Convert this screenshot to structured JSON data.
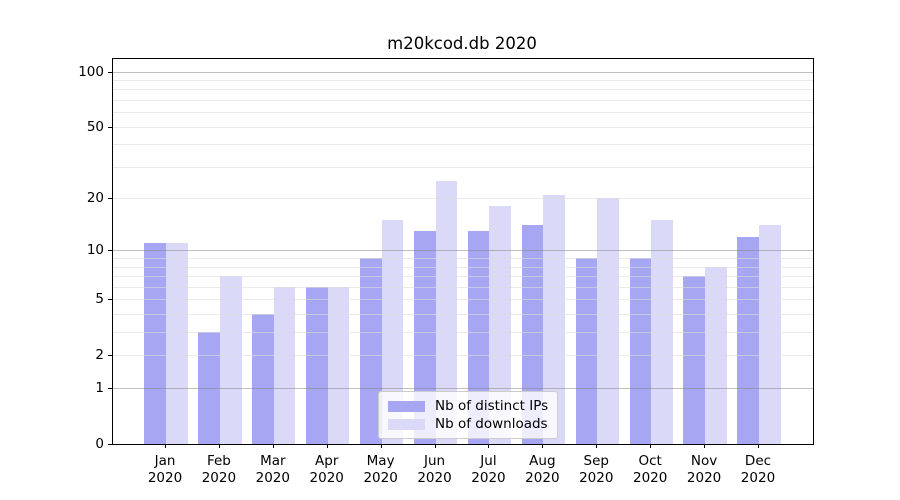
{
  "title": "m20kcod.db 2020",
  "chart_data": {
    "type": "bar",
    "title": "m20kcod.db 2020",
    "categories": [
      "Jan",
      "Feb",
      "Mar",
      "Apr",
      "May",
      "Jun",
      "Jul",
      "Aug",
      "Sep",
      "Oct",
      "Nov",
      "Dec"
    ],
    "category_year": "2020",
    "series": [
      {
        "name": "Nb of distinct IPs",
        "color": "#a6a6f3",
        "values": [
          11,
          3,
          4,
          6,
          9,
          13,
          13,
          14,
          9,
          9,
          7,
          12
        ]
      },
      {
        "name": "Nb of downloads",
        "color": "#dadaf8",
        "values": [
          11,
          7,
          6,
          6,
          15,
          25,
          18,
          21,
          20,
          15,
          8,
          14
        ]
      }
    ],
    "yscale": "log1p",
    "ylim": [
      0,
      117
    ],
    "y_tick_values": [
      0,
      1,
      2,
      5,
      10,
      20,
      50,
      100
    ],
    "y_major_gridlines": [
      1,
      10,
      100
    ],
    "y_minor_gridlines": [
      2,
      3,
      4,
      5,
      6,
      7,
      8,
      9,
      20,
      30,
      40,
      50,
      60,
      70,
      80,
      90
    ],
    "grid": "horizontal-only, drawn above bars",
    "legend_position": "lower center",
    "colors": {
      "axis": "#000000",
      "major_gridline": "rgba(130,130,130,0.5)",
      "minor_gridline": "rgba(220,220,220,0.6)"
    }
  }
}
